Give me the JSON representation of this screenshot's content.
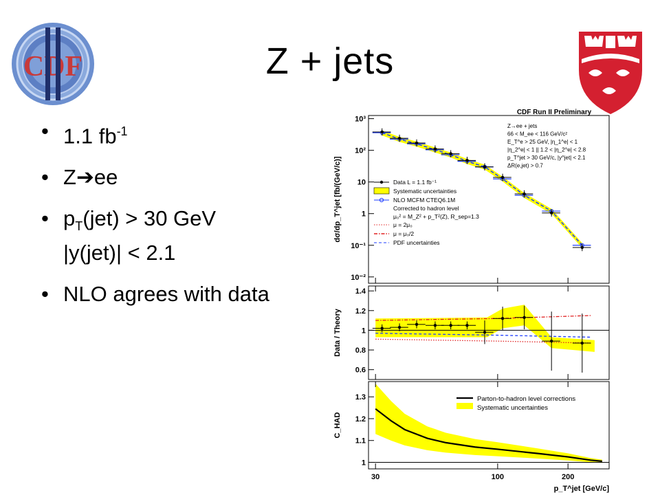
{
  "slide": {
    "title": "Z + jets",
    "bullets": [
      {
        "base": "1.1 fb",
        "sup": "-1",
        "tail": ""
      },
      {
        "pre": "Z",
        "arrow": "➔",
        "post": "ee"
      },
      {
        "pre": "p",
        "sub": "T",
        "post": "(jet) > 30 GeV",
        "line2": "|y(jet)| < 2.1"
      },
      {
        "text": "NLO agrees with data"
      }
    ],
    "bullet_char": "•",
    "logos": {
      "left": {
        "name": "cdf-run-ii-logo",
        "lettering": "CDF II"
      },
      "right": {
        "name": "mcgill-crest-logo"
      }
    }
  },
  "figure": {
    "header": "CDF Run II Preliminary",
    "top_panel": {
      "ylabel": "dσ/dp_T^jet [fb/(GeV/c)]",
      "cuts": [
        "Z→ee + jets",
        "66 < M_ee < 116 GeV/c²",
        "E_T^e > 25 GeV, |η_1^e| < 1",
        "|η_2^e| < 1 || 1.2 < |η_2^e| < 2.8",
        "p_T^jet > 30 GeV/c, |y^jet| < 2.1",
        "ΔR(e,jet) > 0.7"
      ],
      "legend": [
        "Data  L = 1.1 fb⁻¹",
        "Systematic uncertainties",
        "NLO MCFM CTEQ6.1M",
        "Corrected to hadron level",
        "μ₀² = M_Z² + p_T²(Z), R_sep=1.3",
        "μ = 2μ₀",
        "μ = μ₀/2",
        "PDF uncertainties"
      ],
      "yticks": [
        "10³",
        "10²",
        "10",
        "1",
        "10⁻¹",
        "10⁻²"
      ]
    },
    "mid_panel": {
      "ylabel": "Data / Theory",
      "yticks": [
        "1.4",
        "1.2",
        "1",
        "0.8",
        "0.6"
      ]
    },
    "bottom_panel": {
      "ylabel": "C_HAD",
      "yticks": [
        "1.3",
        "1.2",
        "1.1",
        "1"
      ],
      "legend": [
        "Parton-to-hadron level corrections",
        "Systematic uncertainties"
      ]
    },
    "xlabel": "p_T^jet [GeV/c]",
    "xticks": [
      "30",
      "100",
      "200"
    ]
  },
  "chart_data": [
    {
      "type": "scatter",
      "title": "CDF Run II Preliminary",
      "xlabel": "p_T^jet [GeV/c]",
      "ylabel": "dσ/dp_T^jet [fb/(GeV/c)]",
      "log_y": true,
      "ylim": [
        0.01,
        1000
      ],
      "series": [
        {
          "name": "Data  L = 1.1 fb⁻¹",
          "x": [
            32,
            38,
            45,
            54,
            63,
            74,
            88,
            105,
            130,
            170,
            230
          ],
          "y": [
            380,
            240,
            170,
            110,
            78,
            48,
            30,
            14,
            4.2,
            1.05,
            0.085
          ]
        },
        {
          "name": "NLO MCFM CTEQ6.1M",
          "x": [
            32,
            38,
            45,
            54,
            63,
            74,
            88,
            105,
            130,
            170,
            230
          ],
          "y": [
            360,
            225,
            160,
            104,
            72,
            45,
            30,
            12.5,
            3.8,
            1.2,
            0.1
          ]
        }
      ]
    },
    {
      "type": "scatter",
      "ylabel": "Data / Theory",
      "ylim": [
        0.5,
        1.45
      ],
      "series": [
        {
          "name": "Data",
          "x": [
            32,
            38,
            45,
            54,
            63,
            74,
            88,
            105,
            130,
            170,
            230
          ],
          "y": [
            1.02,
            1.03,
            1.06,
            1.05,
            1.05,
            1.05,
            0.98,
            1.12,
            1.13,
            0.89,
            0.87
          ]
        },
        {
          "name": "μ = 2μ₀",
          "x": [
            30,
            100,
            250
          ],
          "y": [
            0.91,
            0.89,
            0.87
          ]
        },
        {
          "name": "μ = μ₀/2",
          "x": [
            30,
            100,
            250
          ],
          "y": [
            1.1,
            1.12,
            1.15
          ]
        },
        {
          "name": "PDF uncertainties",
          "x": [
            30,
            100,
            250
          ],
          "y": [
            0.97,
            0.95,
            0.93
          ]
        }
      ]
    },
    {
      "type": "line",
      "ylabel": "C_HAD",
      "ylim": [
        0.97,
        1.37
      ],
      "series": [
        {
          "name": "Parton-to-hadron level corrections",
          "x": [
            30,
            35,
            40,
            50,
            60,
            80,
            100,
            150,
            200,
            250,
            280
          ],
          "y": [
            1.245,
            1.19,
            1.15,
            1.11,
            1.09,
            1.07,
            1.06,
            1.04,
            1.025,
            1.01,
            1.005
          ]
        }
      ]
    }
  ]
}
